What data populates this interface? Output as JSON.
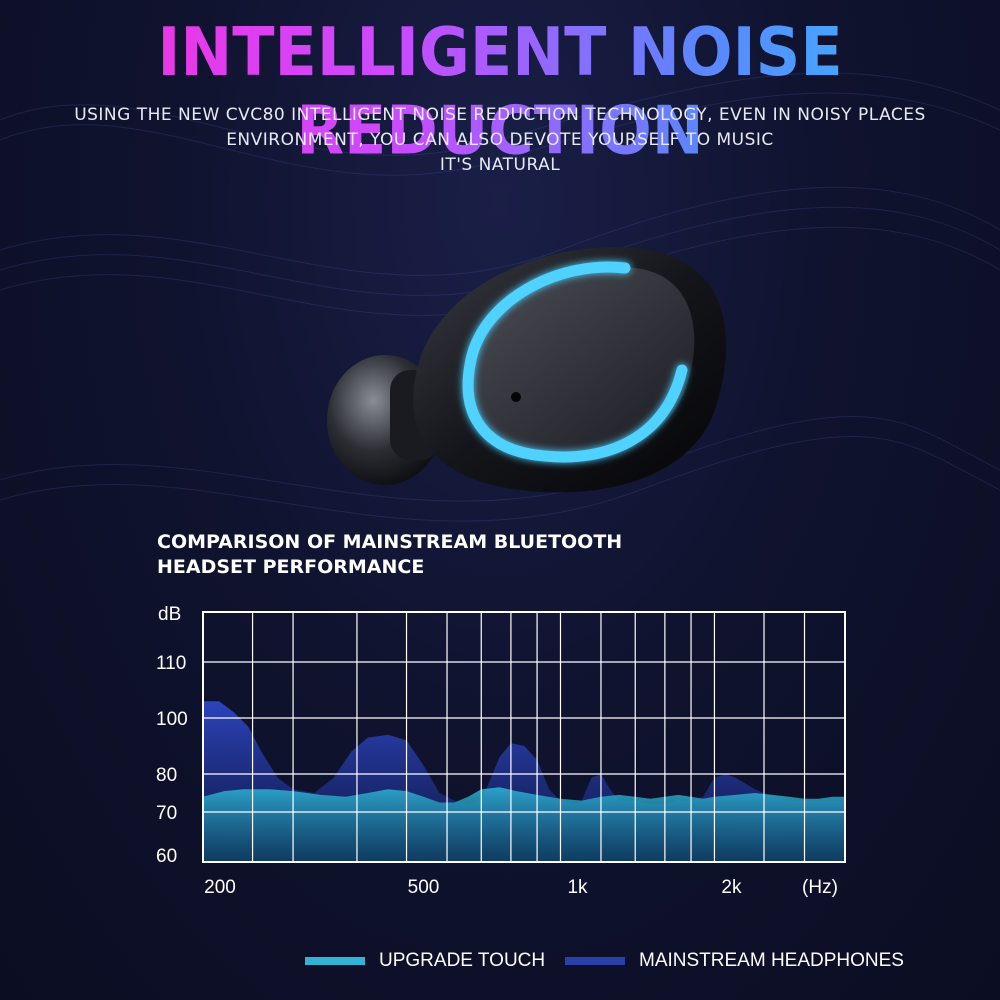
{
  "header": {
    "title": "INTELLIGENT NOISE REDUCTION",
    "subtitle_lines": [
      "USING THE NEW CVC80 INTELLIGENT NOISE REDUCTION TECHNOLOGY, EVEN IN NOISY PLACES",
      "ENVIRONMENT, YOU CAN ALSO DEVOTE YOURSELF TO MUSIC",
      "IT'S NATURAL"
    ]
  },
  "colors": {
    "upgrade": "#31b3d6",
    "mainstream": "#2a3fa8",
    "grid": "#ffffff",
    "earbud_ring": "#4fd2ff"
  },
  "chart_data": {
    "type": "area",
    "title_lines": [
      "COMPARISON OF MAINSTREAM BLUETOOTH",
      "HEADSET PERFORMANCE"
    ],
    "ylabel": "dB",
    "xlabel": "(Hz)",
    "ytick_labels": [
      "110",
      "100",
      "80",
      "70",
      "60"
    ],
    "xtick_labels": [
      "200",
      "500",
      "1k",
      "2k"
    ],
    "x_scale": "log",
    "xlim": [
      200,
      3600
    ],
    "grid": true,
    "series": [
      {
        "name": "MAINSTREAM HEADPHONES",
        "x": [
          200,
          215,
          230,
          245,
          260,
          280,
          300,
          330,
          360,
          390,
          420,
          460,
          500,
          540,
          580,
          620,
          660,
          700,
          760,
          800,
          850,
          900,
          950,
          1000,
          1060,
          1100,
          1150,
          1200,
          1250,
          1300,
          1400,
          1500,
          1600,
          1700,
          1800,
          1900,
          2000,
          2100,
          2200,
          2400,
          2600,
          2800,
          3000,
          3200,
          3600
        ],
        "values": [
          103,
          103,
          101,
          97,
          88,
          79,
          76,
          75,
          79,
          88,
          93,
          94,
          92,
          83,
          75,
          73,
          72,
          73,
          86,
          91,
          90,
          85,
          76,
          73,
          72,
          73,
          79,
          80,
          76,
          73,
          73,
          72,
          72,
          73,
          73,
          74,
          79,
          80,
          79,
          76,
          74,
          73,
          73,
          73,
          73
        ]
      },
      {
        "name": "UPGRADE TOUCH",
        "x": [
          200,
          220,
          240,
          270,
          300,
          340,
          380,
          420,
          460,
          500,
          540,
          580,
          620,
          660,
          700,
          760,
          820,
          900,
          1000,
          1100,
          1200,
          1300,
          1400,
          1500,
          1600,
          1700,
          1800,
          1900,
          2000,
          2200,
          2400,
          2600,
          2800,
          3000,
          3200,
          3400,
          3600
        ],
        "values": [
          74,
          75.5,
          76,
          76,
          75.5,
          74.5,
          74,
          75,
          76,
          75.5,
          74,
          72.5,
          72.5,
          74,
          76,
          76.5,
          75.5,
          74.5,
          73.5,
          73,
          74,
          74.5,
          74,
          73.5,
          74,
          74.5,
          74,
          73.5,
          74,
          74.5,
          75,
          74.5,
          74,
          73.5,
          73.5,
          74,
          74
        ]
      }
    ],
    "legend": [
      "UPGRADE TOUCH",
      "MAINSTREAM HEADPHONES"
    ],
    "legend_placement": "bottom"
  }
}
